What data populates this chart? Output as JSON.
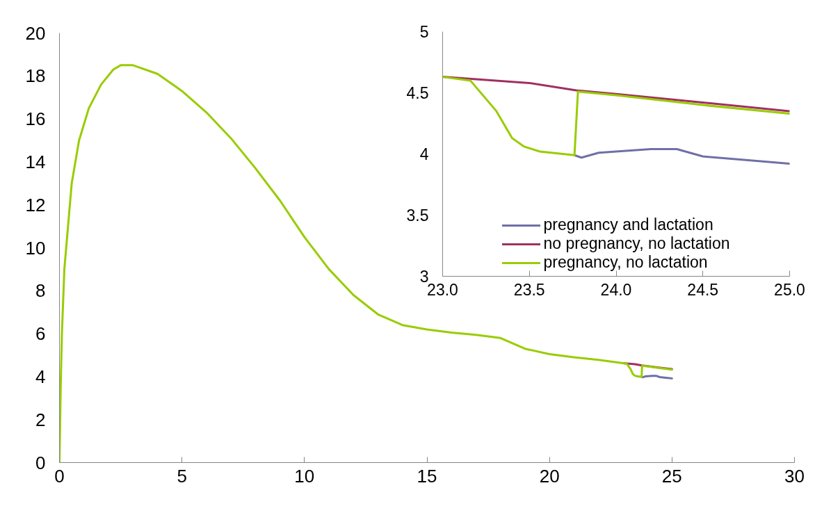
{
  "chart_data": [
    {
      "type": "line",
      "xlim": [
        0,
        30
      ],
      "ylim": [
        0,
        20
      ],
      "xticks": [
        0,
        5,
        10,
        15,
        20,
        25,
        30
      ],
      "yticks": [
        0,
        2,
        4,
        6,
        8,
        10,
        12,
        14,
        16,
        18,
        20
      ],
      "grid": false,
      "legend": false,
      "series": [
        {
          "color": "#6f6fa8",
          "x": [
            23.76,
            23.8,
            23.9,
            24,
            24.2,
            24.35,
            24.5,
            24.75,
            25
          ],
          "values": [
            3.99,
            3.97,
            4.01,
            4.02,
            4.04,
            4.04,
            3.98,
            3.95,
            3.92
          ]
        },
        {
          "color": "#a03060",
          "x": [
            23,
            23.5,
            23.77,
            24,
            24.5,
            25
          ],
          "values": [
            4.63,
            4.58,
            4.52,
            4.49,
            4.42,
            4.35
          ]
        },
        {
          "color": "#99cc00",
          "x": [
            0,
            0.05,
            0.1,
            0.2,
            0.35,
            0.5,
            0.8,
            1.2,
            1.7,
            2.2,
            2.5,
            3,
            4,
            5,
            6,
            7,
            8,
            9,
            10,
            11,
            12,
            13,
            14,
            15,
            16,
            17,
            18,
            19,
            20,
            21,
            22,
            23,
            23.16,
            23.31,
            23.4,
            23.47,
            23.56,
            23.76,
            23.78,
            24,
            24.5,
            25
          ],
          "values": [
            0,
            3.5,
            6,
            9,
            11,
            13,
            15,
            16.5,
            17.6,
            18.3,
            18.5,
            18.5,
            18.1,
            17.3,
            16.3,
            15.1,
            13.7,
            12.2,
            10.5,
            9.0,
            7.8,
            6.9,
            6.4,
            6.2,
            6.05,
            5.95,
            5.8,
            5.3,
            5.05,
            4.9,
            4.78,
            4.63,
            4.6,
            4.35,
            4.13,
            4.06,
            4.02,
            3.99,
            4.51,
            4.48,
            4.4,
            4.33
          ]
        }
      ]
    },
    {
      "type": "line",
      "xlim": [
        23,
        25
      ],
      "ylim": [
        3,
        5
      ],
      "xticks": [
        {
          "value": 23,
          "label": "23.0"
        },
        {
          "value": 23.5,
          "label": "23.5"
        },
        {
          "value": 24,
          "label": "24.0"
        },
        {
          "value": 24.5,
          "label": "24.5"
        },
        {
          "value": 25,
          "label": "25.0"
        }
      ],
      "yticks": [
        3,
        3.5,
        4,
        4.5,
        5
      ],
      "grid": false,
      "legend": "bottom",
      "series": [
        {
          "name": "pregnancy and lactation",
          "color": "#6f6fa8",
          "x": [
            23.76,
            23.8,
            23.9,
            24,
            24.2,
            24.35,
            24.5,
            24.75,
            25
          ],
          "values": [
            3.99,
            3.97,
            4.01,
            4.02,
            4.04,
            4.04,
            3.98,
            3.95,
            3.92
          ]
        },
        {
          "name": "no pregnancy, no lactation",
          "color": "#a03060",
          "x": [
            23,
            23.5,
            23.77,
            24,
            24.5,
            25
          ],
          "values": [
            4.63,
            4.58,
            4.52,
            4.49,
            4.42,
            4.35
          ]
        },
        {
          "name": "pregnancy, no lactation",
          "color": "#99cc00",
          "x": [
            23,
            23.16,
            23.31,
            23.4,
            23.47,
            23.56,
            23.76,
            23.78,
            24,
            24.5,
            25
          ],
          "values": [
            4.63,
            4.6,
            4.35,
            4.13,
            4.06,
            4.02,
            3.99,
            4.51,
            4.48,
            4.4,
            4.33
          ]
        }
      ]
    }
  ]
}
